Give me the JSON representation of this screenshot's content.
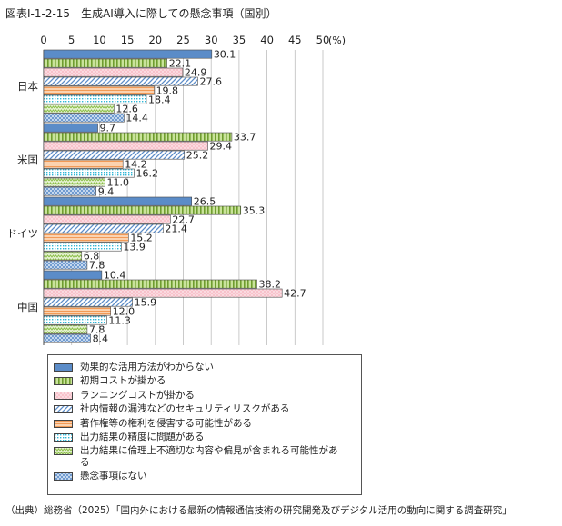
{
  "figure_title": "図表Ⅰ-1-2-15　生成AI導入に際しての懸念事項（国別）",
  "source": "（出典）総務省（2025）「国内外における最新の情報通信技術の研究開発及びデジタル活用の動向に関する調査研究」",
  "chart_data": {
    "type": "bar",
    "orientation": "horizontal",
    "title": "生成AI導入に際しての懸念事項（国別）",
    "xlim": [
      0,
      50
    ],
    "x_ticks": [
      "0",
      "5",
      "10",
      "15",
      "20",
      "25",
      "30",
      "35",
      "40",
      "45",
      "50"
    ],
    "x_unit": "(%)",
    "grid": true,
    "legend_position": "bottom",
    "categories": [
      "日本",
      "米国",
      "ドイツ",
      "中国"
    ],
    "series": [
      {
        "name": "効果的な活用方法がわからない",
        "values": [
          30.1,
          9.7,
          26.5,
          10.4
        ],
        "labels": [
          "30.1",
          "9.7",
          "26.5",
          "10.4"
        ],
        "pattern": "solid-blue",
        "color": "#5b8cc8"
      },
      {
        "name": "初期コストが掛かる",
        "values": [
          22.1,
          33.7,
          35.3,
          38.2
        ],
        "labels": [
          "22.1",
          "33.7",
          "35.3",
          "38.2"
        ],
        "pattern": "green-vertical-stripes",
        "color": "#a9cf63"
      },
      {
        "name": "ランニングコストが掛かる",
        "values": [
          24.9,
          29.4,
          22.7,
          42.7
        ],
        "labels": [
          "24.9",
          "29.4",
          "22.7",
          "42.7"
        ],
        "pattern": "pink-dots",
        "color": "#f4a2b0"
      },
      {
        "name": "社内情報の漏洩などのセキュリティリスクがある",
        "values": [
          27.6,
          25.2,
          21.4,
          15.9
        ],
        "labels": [
          "27.6",
          "25.2",
          "21.4",
          "15.9"
        ],
        "pattern": "blue-diagonal",
        "color": "#8fb3e0"
      },
      {
        "name": "著作権等の権利を侵害する可能性がある",
        "values": [
          19.8,
          14.2,
          15.2,
          12.0
        ],
        "labels": [
          "19.8",
          "14.2",
          "15.2",
          "12.0"
        ],
        "pattern": "orange-horizontal",
        "color": "#f7b37a"
      },
      {
        "name": "出力結果の精度に問題がある",
        "values": [
          18.4,
          16.2,
          13.9,
          11.3
        ],
        "labels": [
          "18.4",
          "16.2",
          "13.9",
          "11.3"
        ],
        "pattern": "cyan-dots",
        "color": "#5cc8e0"
      },
      {
        "name": "出力結果に倫理上不適切な内容や偏見が含まれる可能性がある",
        "values": [
          12.6,
          11.0,
          6.8,
          7.8
        ],
        "labels": [
          "12.6",
          "11.0",
          "6.8",
          "7.8"
        ],
        "pattern": "green-zigzag",
        "color": "#b7d985"
      },
      {
        "name": "懸念事項はない",
        "values": [
          14.4,
          9.4,
          7.8,
          8.4
        ],
        "labels": [
          "14.4",
          "9.4",
          "7.8",
          "8.4"
        ],
        "pattern": "blue-crosshatch",
        "color": "#7aa6d8"
      }
    ]
  }
}
